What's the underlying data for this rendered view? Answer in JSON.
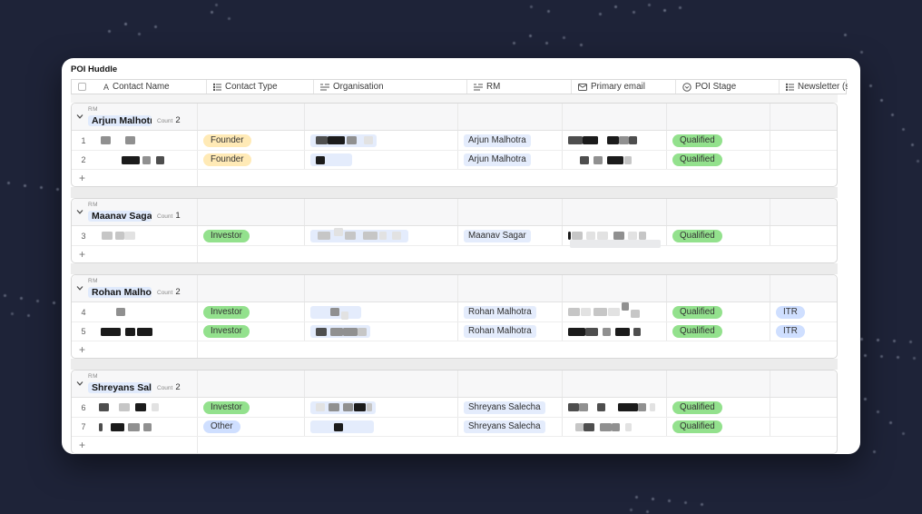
{
  "window": {
    "title": "POI Huddle"
  },
  "colors": {
    "background": "#1e2338",
    "card": "#ffffff",
    "accent_green": "#93e18d",
    "accent_yellow": "#ffeab6",
    "accent_blue": "#cfdfff",
    "linked_pill_blue": "#e4ecfc",
    "group_name_highlight": "#e0eafc"
  },
  "table": {
    "columns": [
      {
        "label": "Contact Name",
        "icon": "text-field-icon"
      },
      {
        "label": "Contact Type",
        "icon": "multi-select-icon"
      },
      {
        "label": "Organisation",
        "icon": "linked-record-icon"
      },
      {
        "label": "RM",
        "icon": "linked-record-icon"
      },
      {
        "label": "Primary email",
        "icon": "email-icon"
      },
      {
        "label": "POI Stage",
        "icon": "single-select-icon"
      },
      {
        "label": "Newsletter (s)",
        "icon": "multi-select-icon"
      }
    ],
    "group_field_label": "RM",
    "count_label": "Count",
    "add_row_label": "+",
    "badge_colors": {
      "Founder": "#ffeab6",
      "Investor": "#93e18d",
      "Other": "#cfdfff",
      "Qualified": "#93e18d",
      "ITR": "#cfdfff"
    },
    "groups": [
      {
        "name": "Arjun Malhotra",
        "count": "2",
        "rows": [
          {
            "num": "1",
            "name_redaction": [
              [
                2,
                11,
                "g"
              ],
              [
                16,
                11,
                "g"
              ]
            ],
            "contact_type": "Founder",
            "organisation_redaction": [
              [
                2,
                13,
                "d"
              ],
              [
                0,
                19,
                "k"
              ],
              [
                2,
                11,
                "g"
              ],
              [
                8,
                10,
                "f"
              ]
            ],
            "org_pill_min_width": 0,
            "rm": "Arjun Malhotra",
            "email_redaction": [
              [
                0,
                16,
                "d"
              ],
              [
                0,
                17,
                "k"
              ],
              [
                10,
                13,
                "k"
              ],
              [
                0,
                11,
                "g"
              ],
              [
                0,
                9,
                "d"
              ]
            ],
            "email_overlay": false,
            "poi_stage": "Qualified",
            "newsletter": ""
          },
          {
            "num": "2",
            "name_redaction": [
              [
                25,
                20,
                "k"
              ],
              [
                3,
                9,
                "g"
              ],
              [
                6,
                9,
                "d"
              ]
            ],
            "contact_type": "Founder",
            "organisation_redaction": [
              [
                2,
                10,
                "k"
              ]
            ],
            "org_pill_min_width": 46,
            "rm": "Arjun Malhotra",
            "email_redaction": [
              [
                13,
                10,
                "d"
              ],
              [
                5,
                10,
                "g"
              ],
              [
                5,
                18,
                "k"
              ],
              [
                1,
                8,
                "l"
              ]
            ],
            "email_overlay": false,
            "poi_stage": "Qualified",
            "newsletter": ""
          }
        ]
      },
      {
        "name": "Maanav Sagar",
        "count": "1",
        "rows": [
          {
            "num": "3",
            "name_redaction": [
              [
                3,
                12,
                "l"
              ],
              [
                3,
                10,
                "l"
              ],
              [
                0,
                12,
                "f"
              ]
            ],
            "contact_type": "Investor",
            "organisation_redaction": [
              [
                4,
                14,
                "l"
              ],
              [
                4,
                10,
                "f",
                -4
              ],
              [
                2,
                12,
                "l"
              ],
              [
                8,
                16,
                "l"
              ],
              [
                2,
                8,
                "f"
              ],
              [
                6,
                10,
                "f"
              ]
            ],
            "org_pill_min_width": 108,
            "rm": "Maanav Sagar",
            "email_redaction": [
              [
                0,
                3,
                "k"
              ],
              [
                1,
                12,
                "l"
              ],
              [
                4,
                10,
                "f"
              ],
              [
                2,
                12,
                "f"
              ],
              [
                6,
                12,
                "g"
              ],
              [
                4,
                10,
                "f"
              ],
              [
                2,
                8,
                "l"
              ]
            ],
            "email_overlay": true,
            "poi_stage": "Qualified",
            "newsletter": ""
          }
        ]
      },
      {
        "name": "Rohan Malhotra",
        "count": "2",
        "rows": [
          {
            "num": "4",
            "name_redaction": [
              [
                19,
                10,
                "g"
              ]
            ],
            "contact_type": "Investor",
            "organisation_redaction": [
              [
                18,
                10,
                "g"
              ],
              [
                2,
                8,
                "f",
                4
              ]
            ],
            "org_pill_min_width": 56,
            "rm": "Rohan Malhotra",
            "email_redaction": [
              [
                0,
                13,
                "l"
              ],
              [
                1,
                11,
                "f"
              ],
              [
                3,
                15,
                "l"
              ],
              [
                1,
                13,
                "f"
              ],
              [
                2,
                8,
                "g",
                -6
              ],
              [
                2,
                10,
                "l",
                2
              ]
            ],
            "email_overlay": false,
            "poi_stage": "Qualified",
            "newsletter": "ITR"
          },
          {
            "num": "5",
            "name_redaction": [
              [
                2,
                22,
                "k"
              ],
              [
                5,
                11,
                "k"
              ],
              [
                2,
                17,
                "k"
              ]
            ],
            "contact_type": "Investor",
            "organisation_redaction": [
              [
                2,
                12,
                "d"
              ],
              [
                4,
                14,
                "g"
              ],
              [
                0,
                16,
                "g"
              ],
              [
                0,
                10,
                "l"
              ]
            ],
            "org_pill_min_width": 0,
            "rm": "Rohan Malhotra",
            "email_redaction": [
              [
                0,
                19,
                "k"
              ],
              [
                0,
                14,
                "d"
              ],
              [
                5,
                9,
                "g"
              ],
              [
                5,
                16,
                "k"
              ],
              [
                4,
                8,
                "d"
              ]
            ],
            "email_overlay": false,
            "poi_stage": "Qualified",
            "newsletter": "ITR"
          }
        ]
      },
      {
        "name": "Shreyans Salecha",
        "count": "2",
        "rows": [
          {
            "num": "6",
            "name_redaction": [
              [
                0,
                11,
                "d"
              ],
              [
                11,
                12,
                "l"
              ],
              [
                6,
                12,
                "k"
              ],
              [
                6,
                8,
                "f"
              ]
            ],
            "contact_type": "Investor",
            "organisation_redaction": [
              [
                2,
                10,
                "f"
              ],
              [
                4,
                12,
                "g"
              ],
              [
                4,
                11,
                "g"
              ],
              [
                1,
                13,
                "k"
              ],
              [
                1,
                6,
                "l"
              ]
            ],
            "org_pill_min_width": 0,
            "rm": "Shreyans Salecha",
            "email_redaction": [
              [
                0,
                12,
                "d"
              ],
              [
                0,
                10,
                "g"
              ],
              [
                10,
                9,
                "d"
              ],
              [
                14,
                22,
                "k"
              ],
              [
                0,
                9,
                "g"
              ],
              [
                4,
                6,
                "f"
              ]
            ],
            "email_overlay": false,
            "poi_stage": "Qualified",
            "newsletter": ""
          },
          {
            "num": "7",
            "name_redaction": [
              [
                0,
                4,
                "d"
              ],
              [
                9,
                15,
                "k"
              ],
              [
                4,
                13,
                "g"
              ],
              [
                4,
                9,
                "g"
              ]
            ],
            "contact_type": "Other",
            "organisation_redaction": [
              [
                22,
                10,
                "k"
              ]
            ],
            "org_pill_min_width": 70,
            "rm": "Shreyans Salecha",
            "email_redaction": [
              [
                8,
                9,
                "l"
              ],
              [
                0,
                12,
                "d"
              ],
              [
                6,
                13,
                "g"
              ],
              [
                0,
                9,
                "g"
              ],
              [
                6,
                7,
                "f"
              ]
            ],
            "email_overlay": false,
            "poi_stage": "Qualified",
            "newsletter": ""
          }
        ]
      }
    ]
  }
}
